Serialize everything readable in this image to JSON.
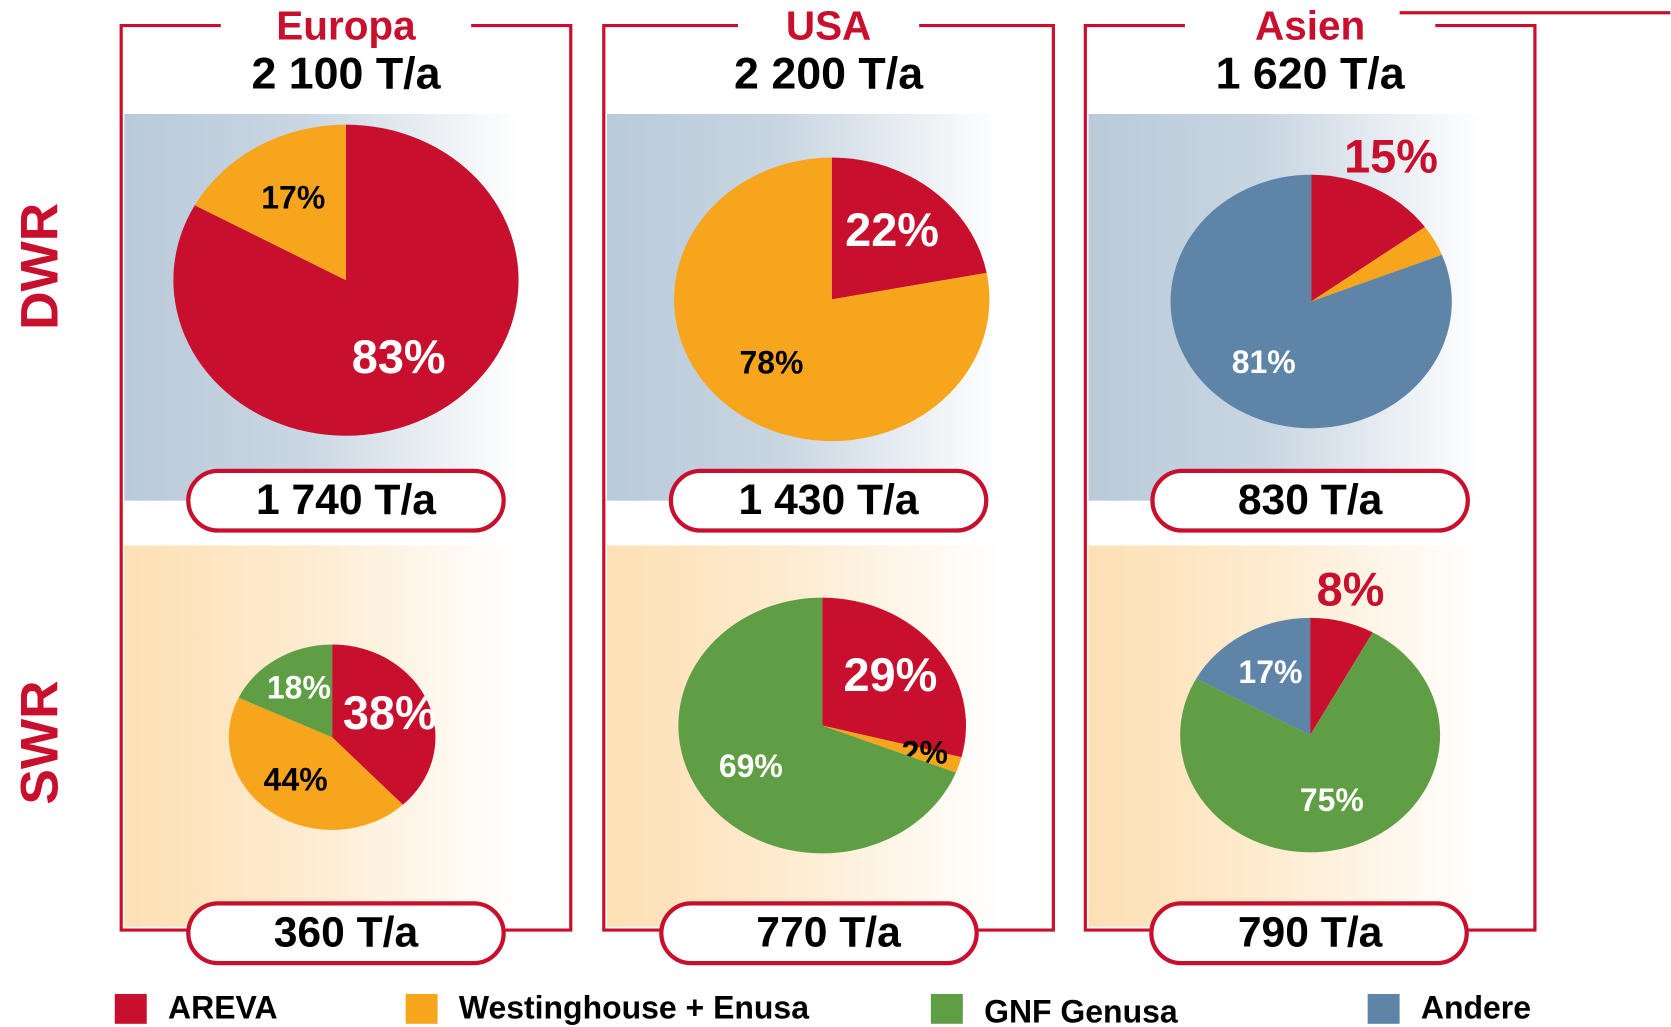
{
  "regions": [
    {
      "name": "Europa",
      "total": "2 100 T/a"
    },
    {
      "name": "USA",
      "total": "2 200 T/a"
    },
    {
      "name": "Asien",
      "total": "1 620 T/a"
    }
  ],
  "rows": [
    "DWR",
    "SWR"
  ],
  "legend": [
    {
      "name": "AREVA",
      "color": "#c8102e"
    },
    {
      "name": "Westinghouse + Enusa",
      "color": "#f7a51c"
    },
    {
      "name": "GNF Genusa",
      "color": "#5f9e45"
    },
    {
      "name": "Andere",
      "color": "#5e84a8"
    }
  ],
  "chart_data": [
    {
      "type": "pie",
      "title": "1 740 T/a",
      "categories": [
        "AREVA",
        "Westinghouse + Enusa"
      ],
      "values": [
        83,
        17
      ],
      "value_labels": [
        "83%",
        "17%"
      ],
      "colors": [
        "#c8102e",
        "#f7a51c"
      ]
    },
    {
      "type": "pie",
      "title": "1 430 T/a",
      "categories": [
        "AREVA",
        "Westinghouse + Enusa"
      ],
      "values": [
        22,
        78
      ],
      "value_labels": [
        "22%",
        "78%"
      ],
      "colors": [
        "#c8102e",
        "#f7a51c"
      ]
    },
    {
      "type": "pie",
      "title": "830 T/a",
      "categories": [
        "AREVA",
        "Westinghouse + Enusa",
        "Andere"
      ],
      "values": [
        15,
        4,
        81
      ],
      "value_labels": [
        "15%",
        null,
        "81%"
      ],
      "colors": [
        "#c8102e",
        "#f7a51c",
        "#5e84a8"
      ]
    },
    {
      "type": "pie",
      "title": "360 T/a",
      "categories": [
        "AREVA",
        "Westinghouse + Enusa",
        "GNF Genusa"
      ],
      "values": [
        38,
        44,
        18
      ],
      "value_labels": [
        "38%",
        "44%",
        "18%"
      ],
      "colors": [
        "#c8102e",
        "#f7a51c",
        "#5f9e45"
      ]
    },
    {
      "type": "pie",
      "title": "770 T/a",
      "categories": [
        "AREVA",
        "Westinghouse + Enusa",
        "GNF Genusa"
      ],
      "values": [
        29,
        2,
        69
      ],
      "value_labels": [
        "29%",
        "2%",
        "69%"
      ],
      "colors": [
        "#c8102e",
        "#f7a51c",
        "#5f9e45"
      ]
    },
    {
      "type": "pie",
      "title": "790 T/a",
      "categories": [
        "AREVA",
        "GNF Genusa",
        "Andere"
      ],
      "values": [
        8,
        75,
        17
      ],
      "value_labels": [
        "8%",
        "75%",
        "17%"
      ],
      "colors": [
        "#c8102e",
        "#5f9e45",
        "#5e84a8"
      ]
    }
  ]
}
